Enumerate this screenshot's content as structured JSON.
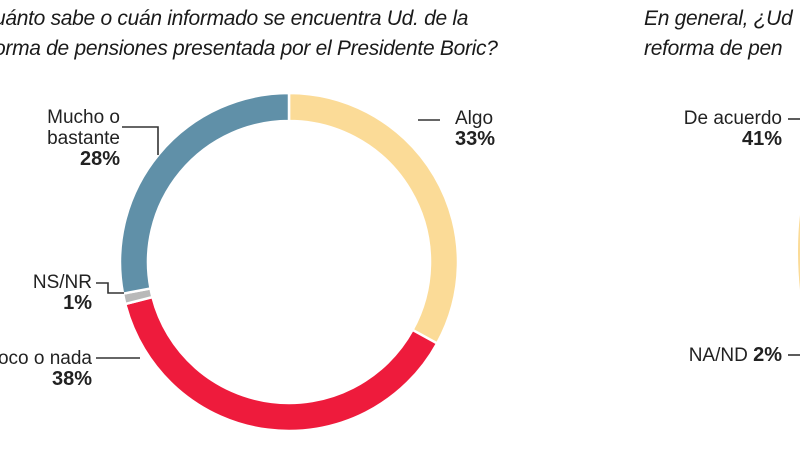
{
  "chart_data": [
    {
      "type": "pie",
      "donut": true,
      "title_lines": [
        "¿Cuánto sabe o cuán informado se encuentra Ud. de la",
        "reforma de pensiones presentada por el Presidente Boric?"
      ],
      "title_visible_lines": [
        "uánto sabe o cuán informado se encuentra Ud. de la",
        "orma de pensiones presentada por el Presidente Boric?"
      ],
      "slices": [
        {
          "label": "Algo",
          "value": 33,
          "pct_label": "33%",
          "color": "#FBDB97"
        },
        {
          "label": "Poco o nada",
          "label_visible": "oco o nada",
          "value": 38,
          "pct_label": "38%",
          "color": "#EE1B3C"
        },
        {
          "label": "NS/NR",
          "value": 1,
          "pct_label": "1%",
          "color": "#B9B9B9"
        },
        {
          "label": "Mucho o bastante",
          "label_lines": [
            "Mucho o",
            "bastante"
          ],
          "value": 28,
          "pct_label": "28%",
          "color": "#6090A8"
        }
      ],
      "start": "top",
      "direction": "clockwise"
    },
    {
      "type": "pie",
      "donut": true,
      "partial": true,
      "title_visible_lines": [
        "En general, ¿Ud",
        "reforma de pen"
      ],
      "slices": [
        {
          "label": "De acuerdo",
          "value": 41,
          "pct_label": "41%",
          "color": "#FBDB97"
        },
        {
          "label": "NA/ND",
          "value": 2,
          "pct_label": "2%"
        }
      ]
    }
  ]
}
